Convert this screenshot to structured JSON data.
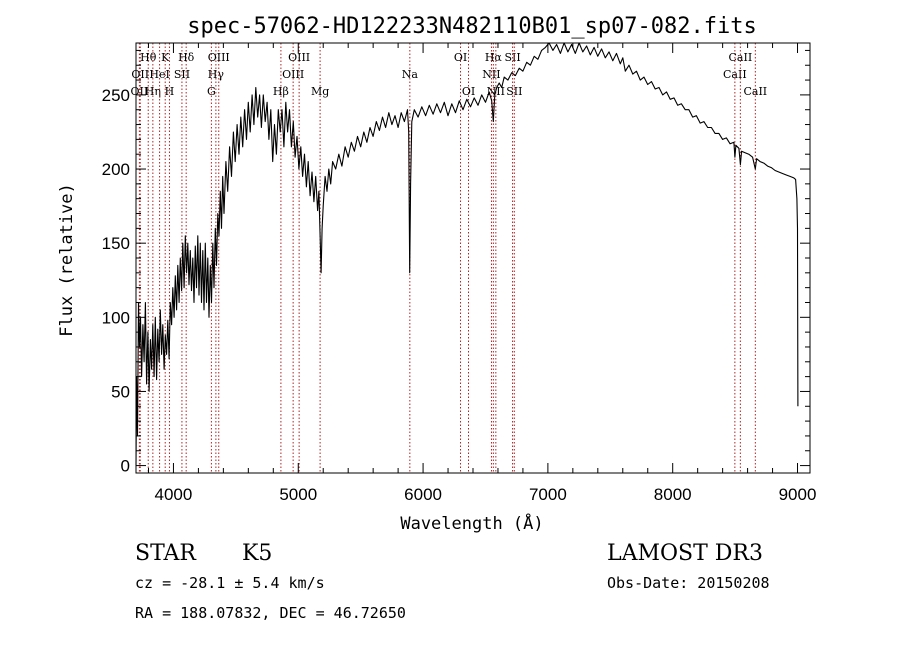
{
  "chart_data": {
    "type": "line",
    "title": "spec-57062-HD122233N482110B01_sp07-082.fits",
    "xlabel": "Wavelength (Å)",
    "ylabel": "Flux (relative)",
    "xlim": [
      3700,
      9100
    ],
    "ylim": [
      -5,
      285
    ],
    "xticks": [
      4000,
      5000,
      6000,
      7000,
      8000,
      9000
    ],
    "xtick_labels": [
      "4000",
      "5000",
      "6000",
      "7000",
      "8000",
      "9000"
    ],
    "yticks": [
      0,
      50,
      100,
      150,
      200,
      250
    ],
    "ytick_labels": [
      "0",
      "50",
      "100",
      "150",
      "200",
      "250"
    ],
    "line_color": "#000000",
    "marker_color": "#b22222",
    "series": [
      {
        "name": "flux",
        "points": [
          [
            3700,
            0
          ],
          [
            3705,
            60
          ],
          [
            3712,
            20
          ],
          [
            3720,
            110
          ],
          [
            3728,
            80
          ],
          [
            3736,
            100
          ],
          [
            3745,
            60
          ],
          [
            3755,
            95
          ],
          [
            3765,
            70
          ],
          [
            3775,
            110
          ],
          [
            3785,
            55
          ],
          [
            3795,
            90
          ],
          [
            3805,
            50
          ],
          [
            3815,
            85
          ],
          [
            3825,
            65
          ],
          [
            3835,
            95
          ],
          [
            3845,
            60
          ],
          [
            3855,
            100
          ],
          [
            3865,
            58
          ],
          [
            3875,
            92
          ],
          [
            3885,
            70
          ],
          [
            3895,
            105
          ],
          [
            3905,
            75
          ],
          [
            3915,
            95
          ],
          [
            3925,
            65
          ],
          [
            3935,
            88
          ],
          [
            3945,
            75
          ],
          [
            3955,
            98
          ],
          [
            3965,
            72
          ],
          [
            3975,
            110
          ],
          [
            3985,
            95
          ],
          [
            3995,
            120
          ],
          [
            4005,
            100
          ],
          [
            4015,
            128
          ],
          [
            4025,
            105
          ],
          [
            4035,
            135
          ],
          [
            4045,
            110
          ],
          [
            4055,
            140
          ],
          [
            4065,
            118
          ],
          [
            4075,
            150
          ],
          [
            4085,
            120
          ],
          [
            4095,
            155
          ],
          [
            4105,
            130
          ],
          [
            4115,
            150
          ],
          [
            4125,
            122
          ],
          [
            4135,
            145
          ],
          [
            4145,
            118
          ],
          [
            4155,
            140
          ],
          [
            4165,
            110
          ],
          [
            4175,
            148
          ],
          [
            4185,
            120
          ],
          [
            4195,
            155
          ],
          [
            4205,
            115
          ],
          [
            4215,
            150
          ],
          [
            4225,
            110
          ],
          [
            4235,
            145
          ],
          [
            4245,
            105
          ],
          [
            4255,
            150
          ],
          [
            4265,
            110
          ],
          [
            4275,
            140
          ],
          [
            4285,
            100
          ],
          [
            4295,
            135
          ],
          [
            4305,
            110
          ],
          [
            4315,
            150
          ],
          [
            4325,
            120
          ],
          [
            4335,
            160
          ],
          [
            4345,
            135
          ],
          [
            4355,
            170
          ],
          [
            4365,
            155
          ],
          [
            4375,
            185
          ],
          [
            4385,
            160
          ],
          [
            4395,
            195
          ],
          [
            4405,
            170
          ],
          [
            4420,
            205
          ],
          [
            4435,
            185
          ],
          [
            4450,
            215
          ],
          [
            4465,
            195
          ],
          [
            4480,
            225
          ],
          [
            4495,
            205
          ],
          [
            4510,
            230
          ],
          [
            4525,
            210
          ],
          [
            4540,
            235
          ],
          [
            4555,
            215
          ],
          [
            4570,
            240
          ],
          [
            4585,
            220
          ],
          [
            4600,
            245
          ],
          [
            4615,
            225
          ],
          [
            4630,
            250
          ],
          [
            4645,
            230
          ],
          [
            4660,
            255
          ],
          [
            4675,
            235
          ],
          [
            4690,
            250
          ],
          [
            4705,
            228
          ],
          [
            4720,
            250
          ],
          [
            4735,
            232
          ],
          [
            4750,
            245
          ],
          [
            4765,
            220
          ],
          [
            4780,
            240
          ],
          [
            4795,
            205
          ],
          [
            4810,
            230
          ],
          [
            4825,
            210
          ],
          [
            4840,
            240
          ],
          [
            4855,
            225
          ],
          [
            4870,
            240
          ],
          [
            4885,
            215
          ],
          [
            4900,
            245
          ],
          [
            4915,
            225
          ],
          [
            4930,
            240
          ],
          [
            4945,
            215
          ],
          [
            4960,
            232
          ],
          [
            4975,
            208
          ],
          [
            4990,
            222
          ],
          [
            5005,
            200
          ],
          [
            5020,
            215
          ],
          [
            5035,
            195
          ],
          [
            5050,
            210
          ],
          [
            5065,
            188
          ],
          [
            5080,
            205
          ],
          [
            5095,
            182
          ],
          [
            5110,
            198
          ],
          [
            5125,
            178
          ],
          [
            5140,
            195
          ],
          [
            5155,
            172
          ],
          [
            5165,
            185
          ],
          [
            5175,
            155
          ],
          [
            5183,
            130
          ],
          [
            5191,
            160
          ],
          [
            5200,
            175
          ],
          [
            5215,
            195
          ],
          [
            5230,
            185
          ],
          [
            5245,
            200
          ],
          [
            5260,
            190
          ],
          [
            5275,
            205
          ],
          [
            5300,
            200
          ],
          [
            5325,
            210
          ],
          [
            5350,
            202
          ],
          [
            5375,
            215
          ],
          [
            5400,
            208
          ],
          [
            5425,
            218
          ],
          [
            5450,
            212
          ],
          [
            5475,
            222
          ],
          [
            5500,
            215
          ],
          [
            5525,
            225
          ],
          [
            5550,
            218
          ],
          [
            5575,
            228
          ],
          [
            5600,
            222
          ],
          [
            5625,
            232
          ],
          [
            5650,
            226
          ],
          [
            5675,
            235
          ],
          [
            5700,
            228
          ],
          [
            5725,
            238
          ],
          [
            5750,
            230
          ],
          [
            5775,
            236
          ],
          [
            5800,
            228
          ],
          [
            5825,
            238
          ],
          [
            5850,
            232
          ],
          [
            5875,
            240
          ],
          [
            5885,
            225
          ],
          [
            5893,
            130
          ],
          [
            5900,
            190
          ],
          [
            5910,
            232
          ],
          [
            5930,
            240
          ],
          [
            5960,
            235
          ],
          [
            5990,
            242
          ],
          [
            6020,
            236
          ],
          [
            6050,
            243
          ],
          [
            6080,
            237
          ],
          [
            6110,
            244
          ],
          [
            6140,
            238
          ],
          [
            6170,
            245
          ],
          [
            6200,
            236
          ],
          [
            6230,
            244
          ],
          [
            6260,
            238
          ],
          [
            6290,
            246
          ],
          [
            6320,
            240
          ],
          [
            6350,
            247
          ],
          [
            6380,
            242
          ],
          [
            6410,
            248
          ],
          [
            6440,
            243
          ],
          [
            6470,
            250
          ],
          [
            6500,
            245
          ],
          [
            6530,
            252
          ],
          [
            6550,
            246
          ],
          [
            6563,
            232
          ],
          [
            6575,
            250
          ],
          [
            6590,
            255
          ],
          [
            6610,
            258
          ],
          [
            6630,
            255
          ],
          [
            6650,
            262
          ],
          [
            6680,
            260
          ],
          [
            6710,
            265
          ],
          [
            6740,
            263
          ],
          [
            6770,
            268
          ],
          [
            6800,
            266
          ],
          [
            6830,
            272
          ],
          [
            6860,
            270
          ],
          [
            6890,
            276
          ],
          [
            6920,
            274
          ],
          [
            6950,
            280
          ],
          [
            6980,
            282
          ],
          [
            7010,
            285
          ],
          [
            7040,
            280
          ],
          [
            7070,
            284
          ],
          [
            7100,
            278
          ],
          [
            7130,
            285
          ],
          [
            7160,
            279
          ],
          [
            7190,
            284
          ],
          [
            7220,
            278
          ],
          [
            7250,
            285
          ],
          [
            7280,
            279
          ],
          [
            7310,
            283
          ],
          [
            7340,
            277
          ],
          [
            7370,
            282
          ],
          [
            7400,
            276
          ],
          [
            7430,
            281
          ],
          [
            7460,
            275
          ],
          [
            7490,
            279
          ],
          [
            7520,
            273
          ],
          [
            7550,
            278
          ],
          [
            7580,
            271
          ],
          [
            7600,
            275
          ],
          [
            7620,
            266
          ],
          [
            7650,
            270
          ],
          [
            7680,
            264
          ],
          [
            7710,
            266
          ],
          [
            7740,
            260
          ],
          [
            7770,
            262
          ],
          [
            7800,
            257
          ],
          [
            7830,
            259
          ],
          [
            7860,
            254
          ],
          [
            7890,
            255
          ],
          [
            7920,
            250
          ],
          [
            7950,
            252
          ],
          [
            7980,
            247
          ],
          [
            8010,
            248
          ],
          [
            8040,
            243
          ],
          [
            8070,
            244
          ],
          [
            8100,
            240
          ],
          [
            8130,
            240
          ],
          [
            8160,
            235
          ],
          [
            8190,
            236
          ],
          [
            8220,
            231
          ],
          [
            8250,
            232
          ],
          [
            8280,
            228
          ],
          [
            8310,
            228
          ],
          [
            8340,
            224
          ],
          [
            8370,
            224
          ],
          [
            8400,
            220
          ],
          [
            8430,
            221
          ],
          [
            8460,
            217
          ],
          [
            8490,
            218
          ],
          [
            8498,
            208
          ],
          [
            8506,
            216
          ],
          [
            8530,
            214
          ],
          [
            8542,
            203
          ],
          [
            8552,
            212
          ],
          [
            8580,
            211
          ],
          [
            8610,
            210
          ],
          [
            8640,
            208
          ],
          [
            8662,
            200
          ],
          [
            8672,
            207
          ],
          [
            8700,
            205
          ],
          [
            8730,
            204
          ],
          [
            8760,
            202
          ],
          [
            8790,
            201
          ],
          [
            8820,
            199
          ],
          [
            8850,
            198
          ],
          [
            8880,
            197
          ],
          [
            8910,
            196
          ],
          [
            8940,
            195
          ],
          [
            8970,
            194
          ],
          [
            8985,
            193
          ],
          [
            8995,
            180
          ],
          [
            9000,
            160
          ],
          [
            9003,
            40
          ]
        ]
      }
    ],
    "line_markers": [
      {
        "wavelength": 3727,
        "label": "OII",
        "row": 3
      },
      {
        "wavelength": 3734,
        "label": "OII",
        "row": 2
      },
      {
        "wavelength": 3798,
        "label": "Hθ",
        "row": 1
      },
      {
        "wavelength": 3835,
        "label": "Hη",
        "row": 3
      },
      {
        "wavelength": 3889,
        "label": "HeI",
        "row": 2
      },
      {
        "wavelength": 3934,
        "label": "K",
        "row": 1
      },
      {
        "wavelength": 3968,
        "label": "H",
        "row": 3
      },
      {
        "wavelength": 4068,
        "label": "SII",
        "row": 2
      },
      {
        "wavelength": 4102,
        "label": "Hδ",
        "row": 1
      },
      {
        "wavelength": 4304,
        "label": "G",
        "row": 3
      },
      {
        "wavelength": 4340,
        "label": "Hγ",
        "row": 2
      },
      {
        "wavelength": 4363,
        "label": "OIII",
        "row": 1
      },
      {
        "wavelength": 4861,
        "label": "Hβ",
        "row": 3
      },
      {
        "wavelength": 4959,
        "label": "OIII",
        "row": 2
      },
      {
        "wavelength": 5007,
        "label": "OIII",
        "row": 1
      },
      {
        "wavelength": 5175,
        "label": "Mg",
        "row": 3
      },
      {
        "wavelength": 5894,
        "label": "Na",
        "row": 2
      },
      {
        "wavelength": 6300,
        "label": "OI",
        "row": 1
      },
      {
        "wavelength": 6364,
        "label": "OI",
        "row": 3
      },
      {
        "wavelength": 6548,
        "label": "NII",
        "row": 2
      },
      {
        "wavelength": 6563,
        "label": "Hα",
        "row": 1
      },
      {
        "wavelength": 6583,
        "label": "NII",
        "row": 3
      },
      {
        "wavelength": 6717,
        "label": "SII",
        "row": 1
      },
      {
        "wavelength": 6731,
        "label": "SII",
        "row": 3
      },
      {
        "wavelength": 8498,
        "label": "CaII",
        "row": 2
      },
      {
        "wavelength": 8542,
        "label": "CaII",
        "row": 1
      },
      {
        "wavelength": 8662,
        "label": "CaII",
        "row": 3
      }
    ]
  },
  "info": {
    "object_class": "STAR",
    "subclass": "K5",
    "survey": "LAMOST DR3",
    "cz": "cz = -28.1 ± 5.4 km/s",
    "obs_date": "Obs-Date: 20150208",
    "coords": "RA = 188.07832, DEC =  46.72650"
  }
}
